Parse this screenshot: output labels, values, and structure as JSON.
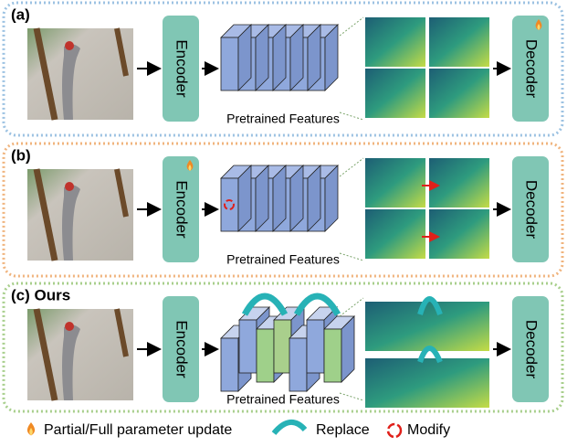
{
  "panels": [
    {
      "label": "(a)",
      "encoder": "Encoder",
      "features": "Pretrained Features",
      "decoder": "Decoder"
    },
    {
      "label": "(b)",
      "encoder": "Encoder",
      "features": "Pretrained Features",
      "decoder": "Decoder"
    },
    {
      "label": "(c) Ours",
      "encoder": "Encoder",
      "features": "Pretrained Features",
      "decoder": "Decoder"
    }
  ],
  "legend": [
    {
      "text": "Partial/Full parameter update"
    },
    {
      "text": "Replace"
    },
    {
      "text": "Modify"
    }
  ]
}
